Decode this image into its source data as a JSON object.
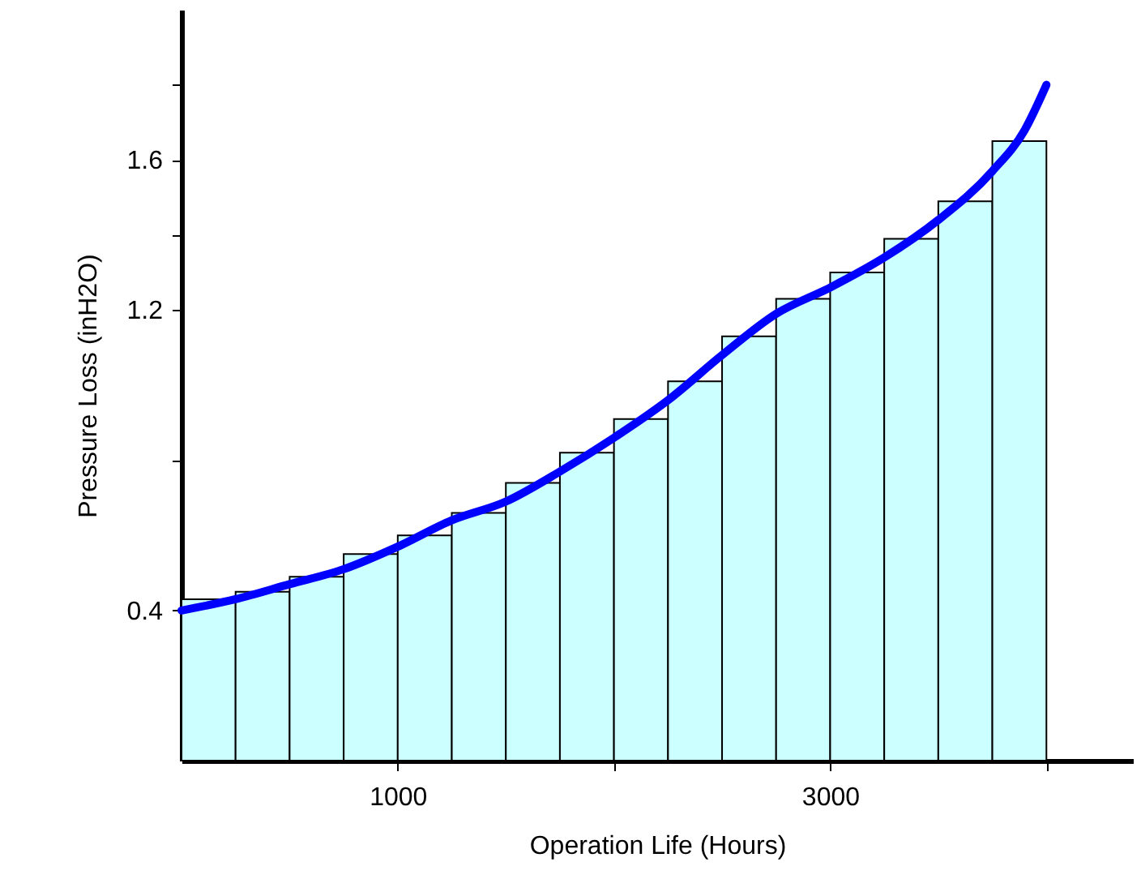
{
  "chart_data": {
    "type": "histogram",
    "xlabel": "Operation Life (Hours)",
    "ylabel": "Pressure Loss (inH2O)",
    "bins": [
      0,
      250,
      500,
      750,
      1000,
      1250,
      1500,
      1750,
      2000,
      2250,
      2500,
      2750,
      3000,
      3250,
      3500,
      3750,
      4000
    ],
    "series": [
      {
        "type": "histogram",
        "color": "#ccffff",
        "values": [
          0.43,
          0.45,
          0.49,
          0.55,
          0.6,
          0.66,
          0.74,
          0.82,
          0.91,
          1.01,
          1.13,
          1.23,
          1.3,
          1.39,
          1.49,
          1.65
        ]
      },
      {
        "type": "line",
        "color": "#0000ff",
        "line_style": "solid",
        "x": [
          0,
          250,
          500,
          750,
          1000,
          1250,
          1500,
          1750,
          2000,
          2250,
          2500,
          2750,
          3000,
          3250,
          3500,
          3750,
          3900,
          4000
        ],
        "values": [
          0.4,
          0.43,
          0.47,
          0.51,
          0.57,
          0.64,
          0.69,
          0.77,
          0.86,
          0.96,
          1.08,
          1.19,
          1.26,
          1.34,
          1.44,
          1.57,
          1.68,
          1.8
        ]
      }
    ],
    "xlim": [
      0,
      4400
    ],
    "xticks": [
      1000,
      {
        "value": 2000,
        "label": null
      },
      3000,
      {
        "value": 4000,
        "label": null
      }
    ],
    "ylim": [
      0,
      2.0
    ],
    "yticks": [
      0.4,
      {
        "value": 0.8,
        "label": null
      },
      1.2,
      {
        "value": 1.4,
        "label": null
      },
      1.6,
      {
        "value": 1.8,
        "label": null
      }
    ]
  }
}
